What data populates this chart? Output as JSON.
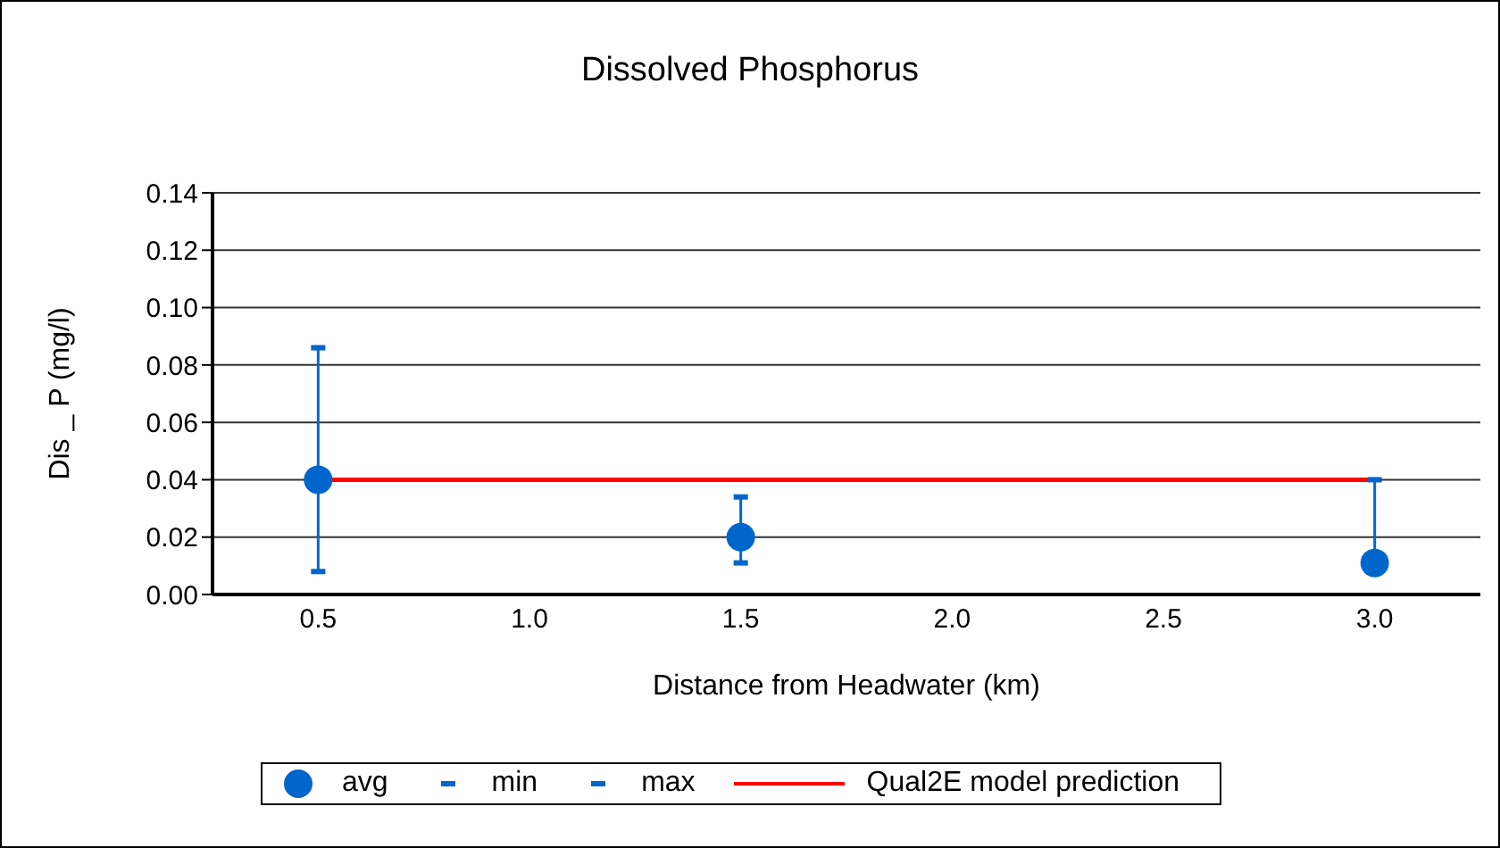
{
  "chart_data": {
    "type": "scatter",
    "title": "Dissolved Phosphorus",
    "xlabel": "Distance from Headwater (km)",
    "ylabel": "Dis _ P (mg/l)",
    "categories": [
      "0.5",
      "1.0",
      "1.5",
      "2.0",
      "2.5",
      "3.0"
    ],
    "series": [
      {
        "name": "avg",
        "marker": "circle",
        "color": "#0066cc",
        "values": [
          0.04,
          null,
          0.02,
          null,
          null,
          0.011
        ]
      },
      {
        "name": "min",
        "color": "#0066cc",
        "values": [
          0.008,
          null,
          0.011,
          null,
          null,
          null
        ]
      },
      {
        "name": "max",
        "color": "#0066cc",
        "values": [
          0.086,
          null,
          0.034,
          null,
          null,
          0.04
        ]
      },
      {
        "name": "Qual2E model prediction",
        "type": "line",
        "marker": "none",
        "color": "#ff0000",
        "values": [
          0.04,
          0.04,
          0.04,
          0.04,
          0.04,
          0.04
        ]
      }
    ],
    "ylim": [
      0,
      0.14
    ],
    "yticks": [
      {
        "value": 0,
        "label": "0.00"
      },
      {
        "value": 0.02,
        "label": "0.02"
      },
      {
        "value": 0.04,
        "label": "0.04"
      },
      {
        "value": 0.06,
        "label": "0.06"
      },
      {
        "value": 0.08,
        "label": "0.08"
      },
      {
        "value": 0.1,
        "label": "0.10"
      },
      {
        "value": 0.12,
        "label": "0.12"
      },
      {
        "value": 0.14,
        "label": "0.14"
      }
    ],
    "grid": "y",
    "legend": "bottom"
  }
}
